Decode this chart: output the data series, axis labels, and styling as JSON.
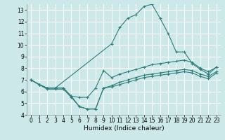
{
  "title": "",
  "xlabel": "Humidex (Indice chaleur)",
  "ylabel": "",
  "bg_color": "#cce8e8",
  "line_color": "#2d7d78",
  "grid_color": "#ffffff",
  "ylim": [
    4,
    13.5
  ],
  "xlim": [
    -0.5,
    23.5
  ],
  "yticks": [
    4,
    5,
    6,
    7,
    8,
    9,
    10,
    11,
    12,
    13
  ],
  "xticks": [
    0,
    1,
    2,
    3,
    4,
    5,
    6,
    7,
    8,
    9,
    10,
    11,
    12,
    13,
    14,
    15,
    16,
    17,
    18,
    19,
    20,
    21,
    22,
    23
  ],
  "lines": [
    {
      "x": [
        0,
        1,
        2,
        3,
        10,
        11,
        12,
        13,
        14,
        15,
        16,
        17,
        18,
        19,
        20,
        21,
        22,
        23
      ],
      "y": [
        7.0,
        6.6,
        6.3,
        6.3,
        10.1,
        11.5,
        12.3,
        12.6,
        13.3,
        13.5,
        12.3,
        11.0,
        9.4,
        9.4,
        8.4,
        7.9,
        7.5,
        8.1
      ]
    },
    {
      "x": [
        0,
        1,
        2,
        3,
        4,
        5,
        6,
        7,
        8,
        9,
        10,
        11,
        12,
        13,
        14,
        15,
        16,
        17,
        18,
        19,
        20,
        21,
        22,
        23
      ],
      "y": [
        7.0,
        6.6,
        6.3,
        6.3,
        6.3,
        5.6,
        5.5,
        5.5,
        6.3,
        7.8,
        7.2,
        7.5,
        7.7,
        7.9,
        8.1,
        8.3,
        8.4,
        8.5,
        8.6,
        8.7,
        8.5,
        8.0,
        7.7,
        8.1
      ]
    },
    {
      "x": [
        0,
        1,
        2,
        3,
        4,
        5,
        6,
        7,
        8,
        9,
        10,
        11,
        12,
        13,
        14,
        15,
        16,
        17,
        18,
        19,
        20,
        21,
        22,
        23
      ],
      "y": [
        7.0,
        6.6,
        6.3,
        6.3,
        6.3,
        5.6,
        4.7,
        4.5,
        4.5,
        6.3,
        6.5,
        6.8,
        7.0,
        7.2,
        7.4,
        7.5,
        7.6,
        7.7,
        7.8,
        7.9,
        7.8,
        7.5,
        7.3,
        7.7
      ]
    },
    {
      "x": [
        0,
        1,
        2,
        3,
        4,
        5,
        6,
        7,
        8,
        9,
        10,
        11,
        12,
        13,
        14,
        15,
        16,
        17,
        18,
        19,
        20,
        21,
        22,
        23
      ],
      "y": [
        7.0,
        6.6,
        6.2,
        6.2,
        6.2,
        5.5,
        4.7,
        4.5,
        4.5,
        6.3,
        6.4,
        6.6,
        6.8,
        7.0,
        7.2,
        7.3,
        7.4,
        7.5,
        7.6,
        7.7,
        7.6,
        7.3,
        7.1,
        7.6
      ]
    }
  ],
  "tick_fontsize": 5.5,
  "xlabel_fontsize": 6.5
}
